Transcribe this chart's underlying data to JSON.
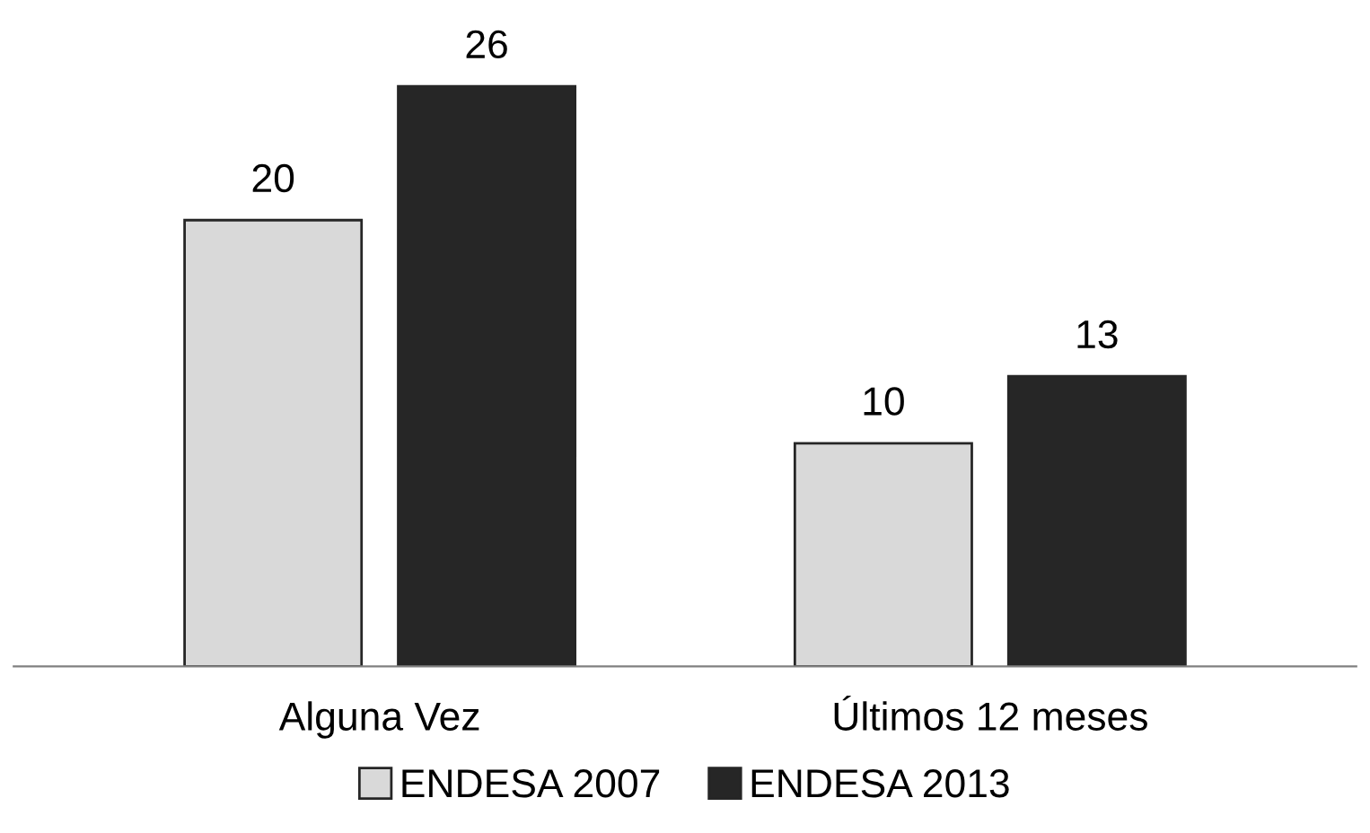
{
  "chart_data": {
    "type": "bar",
    "categories": [
      "Alguna Vez",
      "Últimos 12 meses"
    ],
    "series": [
      {
        "name": "ENDESA 2007",
        "color": "#d9d9d9",
        "values": [
          20,
          10
        ]
      },
      {
        "name": "ENDESA 2013",
        "color": "#262626",
        "values": [
          26,
          13
        ]
      }
    ],
    "data_labels": true,
    "legend": "bottom",
    "grid": false
  }
}
